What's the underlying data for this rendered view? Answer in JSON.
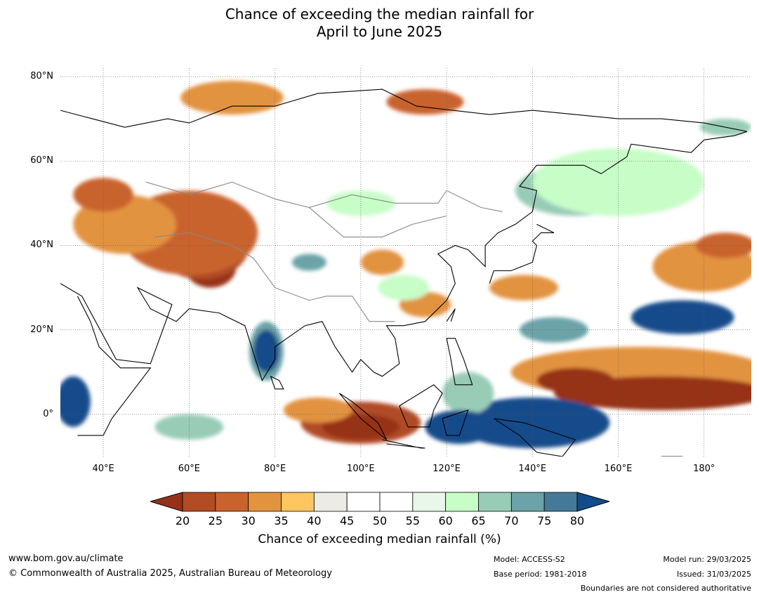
{
  "title": {
    "line1": "Chance of exceeding the median rainfall for",
    "line2": "April to June 2025"
  },
  "map": {
    "lat_range": [
      -10,
      82
    ],
    "lon_range": [
      30,
      191
    ],
    "lat_ticks": [
      {
        "value": 80,
        "label": "80°N"
      },
      {
        "value": 60,
        "label": "60°N"
      },
      {
        "value": 40,
        "label": "40°N"
      },
      {
        "value": 20,
        "label": "20°N"
      },
      {
        "value": 0,
        "label": "0°"
      }
    ],
    "lon_ticks": [
      {
        "value": 40,
        "label": "40°E"
      },
      {
        "value": 60,
        "label": "60°E"
      },
      {
        "value": 80,
        "label": "80°E"
      },
      {
        "value": 100,
        "label": "100°E"
      },
      {
        "value": 120,
        "label": "120°E"
      },
      {
        "value": 140,
        "label": "140°E"
      },
      {
        "value": 160,
        "label": "160°E"
      },
      {
        "value": 180,
        "label": "180°"
      }
    ],
    "regions": [
      {
        "cat": 20,
        "lon": 65,
        "lat": 35,
        "rlon": 6,
        "rlat": 5
      },
      {
        "cat": 25,
        "lon": 63,
        "lat": 40,
        "rlon": 11,
        "rlat": 8
      },
      {
        "cat": 30,
        "lon": 60,
        "lat": 43,
        "rlon": 16,
        "rlat": 10
      },
      {
        "cat": 35,
        "lon": 45,
        "lat": 45,
        "rlon": 12,
        "rlat": 7
      },
      {
        "cat": 30,
        "lon": 40,
        "lat": 52,
        "rlon": 7,
        "rlat": 4
      },
      {
        "cat": 35,
        "lon": 70,
        "lat": 75,
        "rlon": 12,
        "rlat": 4
      },
      {
        "cat": 30,
        "lon": 115,
        "lat": 74,
        "rlon": 9,
        "rlat": 3
      },
      {
        "cat": 35,
        "lon": 105,
        "lat": 36,
        "rlon": 5,
        "rlat": 3
      },
      {
        "cat": 35,
        "lon": 115,
        "lat": 26,
        "rlon": 6,
        "rlat": 3
      },
      {
        "cat": 35,
        "lon": 138,
        "lat": 30,
        "rlon": 8,
        "rlat": 3
      },
      {
        "cat": 35,
        "lon": 180,
        "lat": 35,
        "rlon": 12,
        "rlat": 6
      },
      {
        "cat": 30,
        "lon": 185,
        "lat": 40,
        "rlon": 7,
        "rlat": 3
      },
      {
        "cat": 35,
        "lon": 165,
        "lat": 10,
        "rlon": 30,
        "rlat": 6
      },
      {
        "cat": 20,
        "lon": 170,
        "lat": 5,
        "rlon": 25,
        "rlat": 4
      },
      {
        "cat": 20,
        "lon": 150,
        "lat": 8,
        "rlon": 9,
        "rlat": 3
      },
      {
        "cat": 25,
        "lon": 100,
        "lat": -2,
        "rlon": 14,
        "rlat": 5
      },
      {
        "cat": 20,
        "lon": 100,
        "lat": -3,
        "rlon": 9,
        "rlat": 3
      },
      {
        "cat": 35,
        "lon": 90,
        "lat": 1,
        "rlon": 8,
        "rlat": 3
      },
      {
        "cat": 80,
        "lon": 140,
        "lat": -2,
        "rlon": 18,
        "rlat": 6
      },
      {
        "cat": 70,
        "lon": 125,
        "lat": 5,
        "rlon": 6,
        "rlat": 5
      },
      {
        "cat": 80,
        "lon": 123,
        "lat": -3,
        "rlon": 8,
        "rlat": 4
      },
      {
        "cat": 75,
        "lon": 78,
        "lat": 15,
        "rlon": 4,
        "rlat": 7
      },
      {
        "cat": 80,
        "lon": 78,
        "lat": 15,
        "rlon": 3,
        "rlat": 5
      },
      {
        "cat": 70,
        "lon": 60,
        "lat": -3,
        "rlon": 8,
        "rlat": 3
      },
      {
        "cat": 80,
        "lon": 33,
        "lat": 3,
        "rlon": 4,
        "rlat": 6
      },
      {
        "cat": 70,
        "lon": 150,
        "lat": 53,
        "rlon": 14,
        "rlat": 6
      },
      {
        "cat": 75,
        "lon": 145,
        "lat": 55,
        "rlon": 5,
        "rlat": 3
      },
      {
        "cat": 65,
        "lon": 160,
        "lat": 55,
        "rlon": 20,
        "rlat": 8
      },
      {
        "cat": 80,
        "lon": 175,
        "lat": 23,
        "rlon": 12,
        "rlat": 4
      },
      {
        "cat": 75,
        "lon": 145,
        "lat": 20,
        "rlon": 8,
        "rlat": 3
      },
      {
        "cat": 65,
        "lon": 100,
        "lat": 50,
        "rlon": 8,
        "rlat": 3
      },
      {
        "cat": 65,
        "lon": 110,
        "lat": 30,
        "rlon": 6,
        "rlat": 3
      },
      {
        "cat": 75,
        "lon": 88,
        "lat": 36,
        "rlon": 4,
        "rlat": 2
      },
      {
        "cat": 70,
        "lon": 185,
        "lat": 68,
        "rlon": 6,
        "rlat": 2
      }
    ]
  },
  "colorbar": {
    "ticks": [
      "20",
      "25",
      "30",
      "35",
      "40",
      "45",
      "50",
      "55",
      "60",
      "65",
      "70",
      "75",
      "80"
    ],
    "colors": [
      "#963119",
      "#b14c25",
      "#c9632e",
      "#e2933f",
      "#fdc661",
      "#ecebe5",
      "#ffffff",
      "#ffffff",
      "#e9f7e9",
      "#c7fdc7",
      "#99ccb7",
      "#6ca3a8",
      "#447a97",
      "#134c8b"
    ],
    "label": "Chance of exceeding median rainfall (%)"
  },
  "footer": {
    "url": "www.bom.gov.au/climate",
    "copyright": "© Commonwealth of Australia 2025, Australian Bureau of Meteorology",
    "model": "Model: ACCESS-S2",
    "base_period": "Base period: 1981-2018",
    "model_run": "Model run: 29/03/2025",
    "issued": "Issued: 31/03/2025",
    "disclaimer": "Boundaries are not considered authoritative"
  }
}
